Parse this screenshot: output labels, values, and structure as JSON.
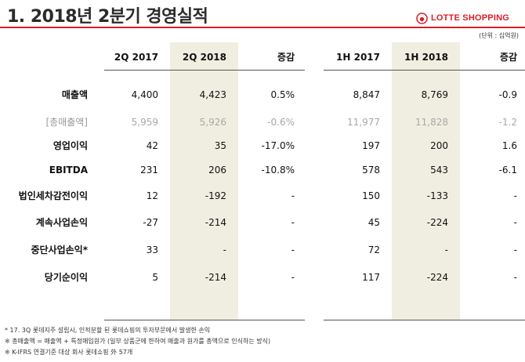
{
  "title": "1. 2018년 2분기 경영실적",
  "brand": {
    "name": "LOTTE SHOPPING",
    "color": "#d81e2a"
  },
  "unit": "(단위 : 십억원)",
  "columns": [
    "2Q 2017",
    "2Q 2018",
    "증감",
    "1H 2017",
    "1H 2018",
    "증감"
  ],
  "rows": [
    {
      "label": "매출액",
      "values": [
        "4,400",
        "4,423",
        "0.5%",
        "8,847",
        "8,769",
        "-0.9"
      ],
      "muted": false
    },
    {
      "label": "[총매출액]",
      "values": [
        "5,959",
        "5,926",
        "-0.6%",
        "11,977",
        "11,828",
        "-1.2"
      ],
      "muted": true
    },
    {
      "label": "영업이익",
      "values": [
        "42",
        "35",
        "-17.0%",
        "197",
        "200",
        "1.6"
      ],
      "muted": false
    },
    {
      "label": "EBITDA",
      "values": [
        "231",
        "206",
        "-10.8%",
        "578",
        "543",
        "-6.1"
      ],
      "muted": false
    },
    {
      "label": "법인세차감전이익",
      "values": [
        "12",
        "-192",
        "-",
        "150",
        "-133",
        "-"
      ],
      "muted": false
    },
    {
      "label": "계속사업손익",
      "values": [
        "-27",
        "-214",
        "-",
        "45",
        "-224",
        "-"
      ],
      "muted": false
    },
    {
      "label": "중단사업손익*",
      "values": [
        "33",
        "-",
        "-",
        "72",
        "-",
        "-"
      ],
      "muted": false
    },
    {
      "label": "당기순이익",
      "values": [
        "5",
        "-214",
        "-",
        "117",
        "-224",
        "-"
      ],
      "muted": false
    }
  ],
  "notes": [
    "* 17. 3Q 롯데지주 설립시, 인적분할 된 롯데쇼핑의 투자부문에서 발생한 손익",
    "※ 총매출액 = 매출액 + 특정매입원가 (일부 상품군에 한하여 매출과 원가를 총액으로 인식하는 방식)",
    "※ K-IFRS 연결기준 대상 회사 롯데쇼핑 外 57개"
  ]
}
